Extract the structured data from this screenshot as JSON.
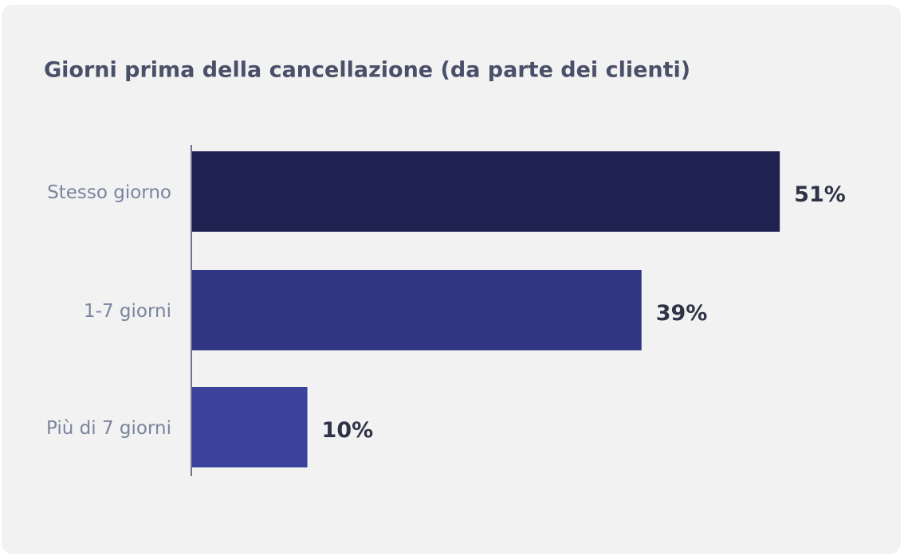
{
  "chart_data": {
    "type": "hbar",
    "title": "Giorni prima della cancellazione (da parte dei clienti)",
    "categories": [
      "Stesso giorno",
      "1-7 giorni",
      "Più di 7 giorni"
    ],
    "values": [
      51,
      39,
      10
    ],
    "value_labels": [
      "51%",
      "39%",
      "10%"
    ],
    "colors": [
      "#1f2150",
      "#313683",
      "#3b429c"
    ],
    "xlim": [
      0,
      55
    ]
  }
}
